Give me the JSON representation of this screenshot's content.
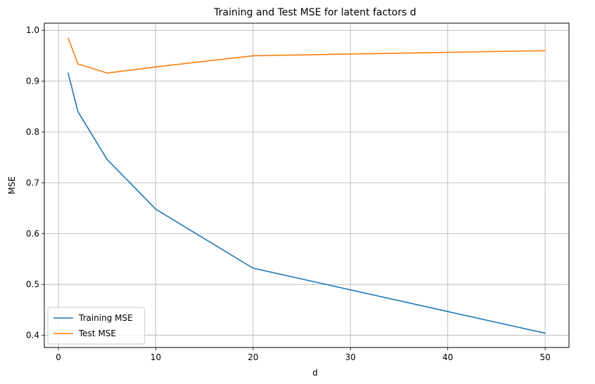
{
  "chart_data": {
    "type": "line",
    "title": "Training and Test MSE for latent factors d",
    "xlabel": "d",
    "ylabel": "MSE",
    "x": [
      1,
      2,
      5,
      10,
      20,
      50
    ],
    "series": [
      {
        "name": "Training MSE",
        "color": "#1f77b4",
        "values": [
          0.916,
          0.84,
          0.746,
          0.648,
          0.532,
          0.404
        ]
      },
      {
        "name": "Test MSE",
        "color": "#ff7f0e",
        "values": [
          0.985,
          0.934,
          0.916,
          0.928,
          0.95,
          0.96
        ]
      }
    ],
    "xticks": [
      0,
      10,
      20,
      30,
      40,
      50
    ],
    "yticks": [
      0.4,
      0.5,
      0.6,
      0.7,
      0.8,
      0.9,
      1.0
    ],
    "xtick_labels": [
      "0",
      "10",
      "20",
      "30",
      "40",
      "50"
    ],
    "ytick_labels": [
      "0.4",
      "0.5",
      "0.6",
      "0.7",
      "0.8",
      "0.9",
      "1.0"
    ],
    "xlim": [
      -1.45,
      52.45
    ],
    "ylim": [
      0.3759,
      1.0141
    ],
    "grid": true,
    "legend_position": "lower-left"
  }
}
